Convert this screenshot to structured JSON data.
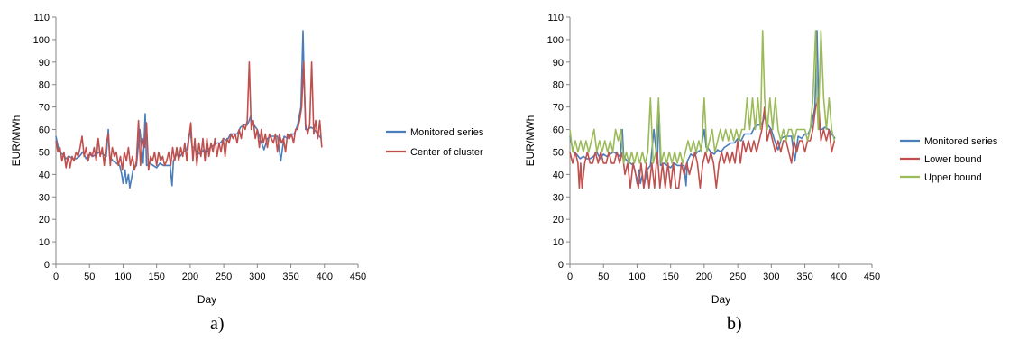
{
  "chart_data": [
    {
      "id": "a",
      "type": "line",
      "caption": "a)",
      "xlabel": "Day",
      "ylabel": "EUR/MWh",
      "xlim": [
        0,
        450
      ],
      "ylim": [
        0,
        110
      ],
      "xticks": [
        0,
        50,
        100,
        150,
        200,
        250,
        300,
        350,
        400,
        450
      ],
      "yticks": [
        0,
        10,
        20,
        30,
        40,
        50,
        60,
        70,
        80,
        90,
        100,
        110
      ],
      "grid": false,
      "legend_position": "right",
      "series": [
        {
          "name": "Monitored series",
          "color": "#4a7ebb",
          "x": [
            0,
            5,
            10,
            15,
            20,
            25,
            30,
            35,
            40,
            45,
            50,
            55,
            60,
            65,
            70,
            75,
            78,
            80,
            85,
            90,
            95,
            98,
            100,
            103,
            105,
            108,
            110,
            115,
            120,
            125,
            130,
            133,
            135,
            140,
            145,
            150,
            155,
            160,
            165,
            170,
            173,
            175,
            180,
            185,
            190,
            195,
            200,
            203,
            205,
            210,
            215,
            220,
            225,
            230,
            235,
            240,
            245,
            250,
            255,
            260,
            265,
            270,
            275,
            280,
            285,
            288,
            290,
            293,
            295,
            300,
            305,
            310,
            315,
            320,
            325,
            330,
            335,
            340,
            345,
            350,
            355,
            360,
            365,
            368,
            370,
            372,
            375,
            380,
            385,
            390,
            395
          ],
          "values": [
            57,
            50,
            49,
            47,
            48,
            47,
            47,
            48,
            50,
            47,
            49,
            48,
            49,
            50,
            49,
            48,
            60,
            48,
            46,
            45,
            44,
            40,
            36,
            42,
            36,
            40,
            34,
            42,
            44,
            60,
            45,
            67,
            44,
            45,
            44,
            43,
            45,
            44,
            44,
            44,
            35,
            46,
            49,
            48,
            50,
            51,
            60,
            52,
            52,
            50,
            49,
            51,
            50,
            52,
            53,
            54,
            54,
            56,
            55,
            58,
            58,
            58,
            61,
            62,
            62,
            64,
            66,
            63,
            62,
            60,
            55,
            51,
            56,
            57,
            57,
            57,
            46,
            57,
            56,
            58,
            58,
            62,
            70,
            104,
            80,
            60,
            60,
            61,
            60,
            58,
            56
          ]
        },
        {
          "name": "Center of cluster",
          "color": "#c0504d",
          "x": [
            0,
            3,
            6,
            9,
            12,
            15,
            18,
            21,
            24,
            27,
            30,
            33,
            36,
            39,
            42,
            45,
            48,
            51,
            54,
            57,
            60,
            63,
            66,
            69,
            72,
            75,
            78,
            81,
            84,
            87,
            90,
            93,
            96,
            99,
            102,
            105,
            108,
            111,
            114,
            117,
            120,
            123,
            126,
            129,
            132,
            135,
            138,
            141,
            144,
            147,
            150,
            153,
            156,
            159,
            162,
            165,
            168,
            171,
            174,
            177,
            180,
            183,
            186,
            189,
            192,
            195,
            198,
            201,
            204,
            207,
            210,
            213,
            216,
            219,
            222,
            225,
            228,
            231,
            234,
            237,
            240,
            243,
            246,
            249,
            252,
            255,
            258,
            261,
            264,
            267,
            270,
            273,
            276,
            279,
            282,
            285,
            288,
            291,
            294,
            297,
            300,
            303,
            306,
            309,
            312,
            315,
            318,
            321,
            324,
            327,
            330,
            333,
            336,
            339,
            342,
            345,
            348,
            351,
            354,
            357,
            360,
            363,
            366,
            369,
            372,
            375,
            378,
            381,
            384,
            387,
            390,
            393,
            396
          ],
          "values": [
            55,
            50,
            52,
            46,
            50,
            43,
            48,
            43,
            48,
            46,
            50,
            48,
            52,
            57,
            48,
            52,
            46,
            50,
            48,
            52,
            46,
            56,
            48,
            52,
            44,
            54,
            58,
            44,
            52,
            48,
            50,
            44,
            48,
            42,
            50,
            46,
            52,
            44,
            48,
            42,
            46,
            64,
            44,
            56,
            52,
            63,
            42,
            48,
            46,
            50,
            44,
            50,
            46,
            48,
            44,
            46,
            50,
            44,
            52,
            46,
            52,
            46,
            52,
            48,
            54,
            46,
            56,
            63,
            46,
            56,
            44,
            54,
            48,
            56,
            46,
            56,
            48,
            54,
            50,
            56,
            48,
            54,
            50,
            56,
            48,
            56,
            54,
            58,
            56,
            58,
            54,
            60,
            56,
            62,
            60,
            64,
            90,
            60,
            64,
            56,
            60,
            52,
            60,
            54,
            58,
            52,
            58,
            56,
            54,
            58,
            50,
            58,
            54,
            56,
            50,
            58,
            56,
            58,
            54,
            60,
            60,
            64,
            70,
            90,
            62,
            58,
            62,
            90,
            58,
            64,
            56,
            64,
            52
          ]
        }
      ]
    },
    {
      "id": "b",
      "type": "line",
      "caption": "b)",
      "xlabel": "Day",
      "ylabel": "EUR/MWh",
      "xlim": [
        0,
        450
      ],
      "ylim": [
        0,
        110
      ],
      "xticks": [
        0,
        50,
        100,
        150,
        200,
        250,
        300,
        350,
        400,
        450
      ],
      "yticks": [
        0,
        10,
        20,
        30,
        40,
        50,
        60,
        70,
        80,
        90,
        100,
        110
      ],
      "grid": false,
      "legend_position": "right",
      "series": [
        {
          "name": "Monitored series",
          "color": "#4a7ebb",
          "x": [
            0,
            5,
            10,
            15,
            20,
            25,
            30,
            35,
            40,
            45,
            50,
            55,
            60,
            65,
            70,
            75,
            78,
            80,
            85,
            90,
            95,
            98,
            100,
            103,
            105,
            108,
            110,
            115,
            120,
            125,
            130,
            133,
            135,
            140,
            145,
            150,
            155,
            160,
            165,
            170,
            173,
            175,
            180,
            185,
            190,
            195,
            200,
            203,
            205,
            210,
            215,
            220,
            225,
            230,
            235,
            240,
            245,
            250,
            255,
            260,
            265,
            270,
            275,
            280,
            285,
            288,
            290,
            293,
            295,
            300,
            305,
            310,
            315,
            320,
            325,
            330,
            335,
            340,
            345,
            350,
            355,
            360,
            365,
            368,
            370,
            372,
            375,
            380,
            385,
            390,
            395
          ],
          "values": [
            57,
            50,
            49,
            47,
            48,
            47,
            47,
            48,
            50,
            47,
            49,
            48,
            49,
            50,
            49,
            48,
            60,
            48,
            46,
            45,
            44,
            40,
            36,
            42,
            36,
            40,
            34,
            42,
            44,
            60,
            45,
            67,
            44,
            45,
            44,
            43,
            45,
            44,
            44,
            44,
            35,
            46,
            49,
            48,
            50,
            51,
            60,
            52,
            52,
            50,
            49,
            51,
            50,
            52,
            53,
            54,
            54,
            56,
            55,
            58,
            58,
            58,
            61,
            62,
            62,
            64,
            66,
            63,
            62,
            60,
            55,
            51,
            56,
            57,
            57,
            57,
            46,
            57,
            56,
            58,
            58,
            62,
            70,
            104,
            80,
            60,
            60,
            61,
            60,
            58,
            56
          ]
        },
        {
          "name": "Lower bound",
          "color": "#c0504d",
          "x": [
            0,
            4,
            8,
            12,
            14,
            16,
            18,
            22,
            26,
            30,
            34,
            38,
            42,
            46,
            50,
            54,
            58,
            62,
            66,
            70,
            74,
            78,
            82,
            86,
            90,
            94,
            98,
            102,
            106,
            110,
            114,
            118,
            122,
            126,
            130,
            134,
            138,
            142,
            146,
            150,
            154,
            158,
            162,
            166,
            170,
            174,
            178,
            182,
            186,
            190,
            194,
            198,
            202,
            206,
            210,
            214,
            218,
            222,
            226,
            230,
            234,
            238,
            242,
            246,
            250,
            254,
            258,
            262,
            266,
            270,
            274,
            278,
            282,
            286,
            290,
            294,
            298,
            302,
            306,
            310,
            314,
            318,
            322,
            326,
            330,
            334,
            338,
            342,
            346,
            350,
            354,
            358,
            362,
            366,
            370,
            374,
            378,
            382,
            386,
            390,
            394
          ],
          "values": [
            50,
            45,
            50,
            45,
            34,
            45,
            34,
            45,
            50,
            45,
            45,
            50,
            45,
            50,
            45,
            45,
            50,
            45,
            45,
            50,
            45,
            50,
            40,
            45,
            34,
            45,
            40,
            34,
            45,
            34,
            45,
            34,
            45,
            34,
            50,
            34,
            45,
            34,
            45,
            34,
            45,
            34,
            34,
            45,
            40,
            45,
            40,
            45,
            50,
            45,
            34,
            45,
            50,
            45,
            50,
            45,
            34,
            45,
            50,
            45,
            50,
            45,
            50,
            45,
            55,
            45,
            55,
            50,
            55,
            50,
            55,
            50,
            55,
            60,
            70,
            55,
            60,
            55,
            50,
            55,
            50,
            55,
            55,
            50,
            45,
            55,
            50,
            55,
            55,
            50,
            55,
            55,
            60,
            70,
            74,
            55,
            60,
            55,
            60,
            50,
            55
          ]
        },
        {
          "name": "Upper bound",
          "color": "#9bbb59",
          "x": [
            0,
            4,
            8,
            12,
            16,
            20,
            24,
            28,
            32,
            36,
            40,
            44,
            48,
            52,
            56,
            60,
            64,
            68,
            72,
            76,
            80,
            84,
            88,
            92,
            96,
            100,
            104,
            108,
            112,
            116,
            120,
            124,
            128,
            132,
            136,
            140,
            144,
            148,
            152,
            156,
            160,
            164,
            168,
            172,
            176,
            180,
            184,
            188,
            192,
            196,
            200,
            204,
            208,
            212,
            216,
            220,
            224,
            228,
            232,
            236,
            240,
            244,
            248,
            252,
            256,
            260,
            264,
            268,
            272,
            276,
            280,
            284,
            287,
            290,
            294,
            298,
            302,
            306,
            310,
            314,
            318,
            322,
            326,
            330,
            334,
            338,
            342,
            346,
            350,
            354,
            358,
            362,
            366,
            368,
            370,
            374,
            378,
            382,
            386,
            390,
            394
          ],
          "values": [
            60,
            50,
            55,
            50,
            55,
            50,
            55,
            50,
            55,
            60,
            50,
            55,
            50,
            55,
            50,
            55,
            50,
            60,
            55,
            60,
            45,
            50,
            45,
            50,
            45,
            50,
            45,
            50,
            45,
            50,
            74,
            45,
            50,
            74,
            45,
            50,
            45,
            50,
            45,
            50,
            45,
            50,
            45,
            50,
            55,
            50,
            55,
            50,
            55,
            50,
            74,
            50,
            55,
            60,
            50,
            55,
            60,
            55,
            60,
            55,
            60,
            55,
            60,
            55,
            60,
            60,
            74,
            60,
            74,
            60,
            74,
            60,
            104,
            74,
            60,
            74,
            60,
            74,
            60,
            55,
            60,
            55,
            60,
            60,
            55,
            60,
            60,
            60,
            60,
            55,
            60,
            74,
            104,
            74,
            60,
            104,
            74,
            60,
            74,
            60,
            55
          ]
        }
      ]
    }
  ]
}
